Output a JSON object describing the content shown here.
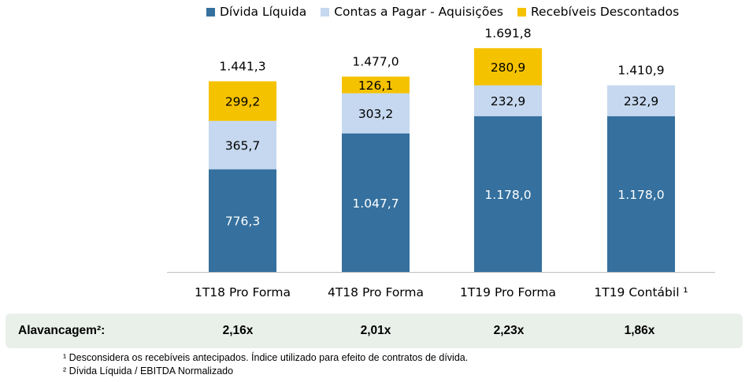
{
  "legend": [
    {
      "label": "Dívida Líquida",
      "color": "#35709e"
    },
    {
      "label": "Contas a Pagar - Aquisições",
      "color": "#c5d8ef"
    },
    {
      "label": "Recebíveis Descontados",
      "color": "#f5c200"
    }
  ],
  "chart_data": {
    "type": "bar",
    "stacked": true,
    "categories": [
      "1T18 Pro Forma",
      "4T18 Pro Forma",
      "1T19 Pro Forma",
      "1T19 Contábil ¹"
    ],
    "series": [
      {
        "name": "Dívida Líquida",
        "color": "#35709e",
        "values": [
          "776,3",
          "1.047,7",
          "1.178,0",
          "1.178,0"
        ],
        "numeric": [
          776.3,
          1047.7,
          1178.0,
          1178.0
        ]
      },
      {
        "name": "Contas a Pagar - Aquisições",
        "color": "#c5d8ef",
        "values": [
          "365,7",
          "303,2",
          "232,9",
          "232,9"
        ],
        "numeric": [
          365.7,
          303.2,
          232.9,
          232.9
        ]
      },
      {
        "name": "Recebíveis Descontados",
        "color": "#f5c200",
        "values": [
          "299,2",
          "126,1",
          "280,9",
          ""
        ],
        "numeric": [
          299.2,
          126.1,
          280.9,
          0
        ]
      }
    ],
    "totals": [
      "1.441,3",
      "1.477,0",
      "1.691,8",
      "1.410,9"
    ],
    "ylim": [
      0,
      1691.8
    ],
    "grid": false,
    "legend_position": "top"
  },
  "leverage": {
    "label": "Alavancagem²:",
    "values": [
      "2,16x",
      "2,01x",
      "2,23x",
      "1,86x"
    ],
    "bg_color": "#e9f0ea"
  },
  "footnotes": [
    "¹ Desconsidera os recebíveis antecipados. Índice utilizado para efeito de contratos de dívida.",
    "² Dívida Líquida / EBITDA Normalizado"
  ]
}
